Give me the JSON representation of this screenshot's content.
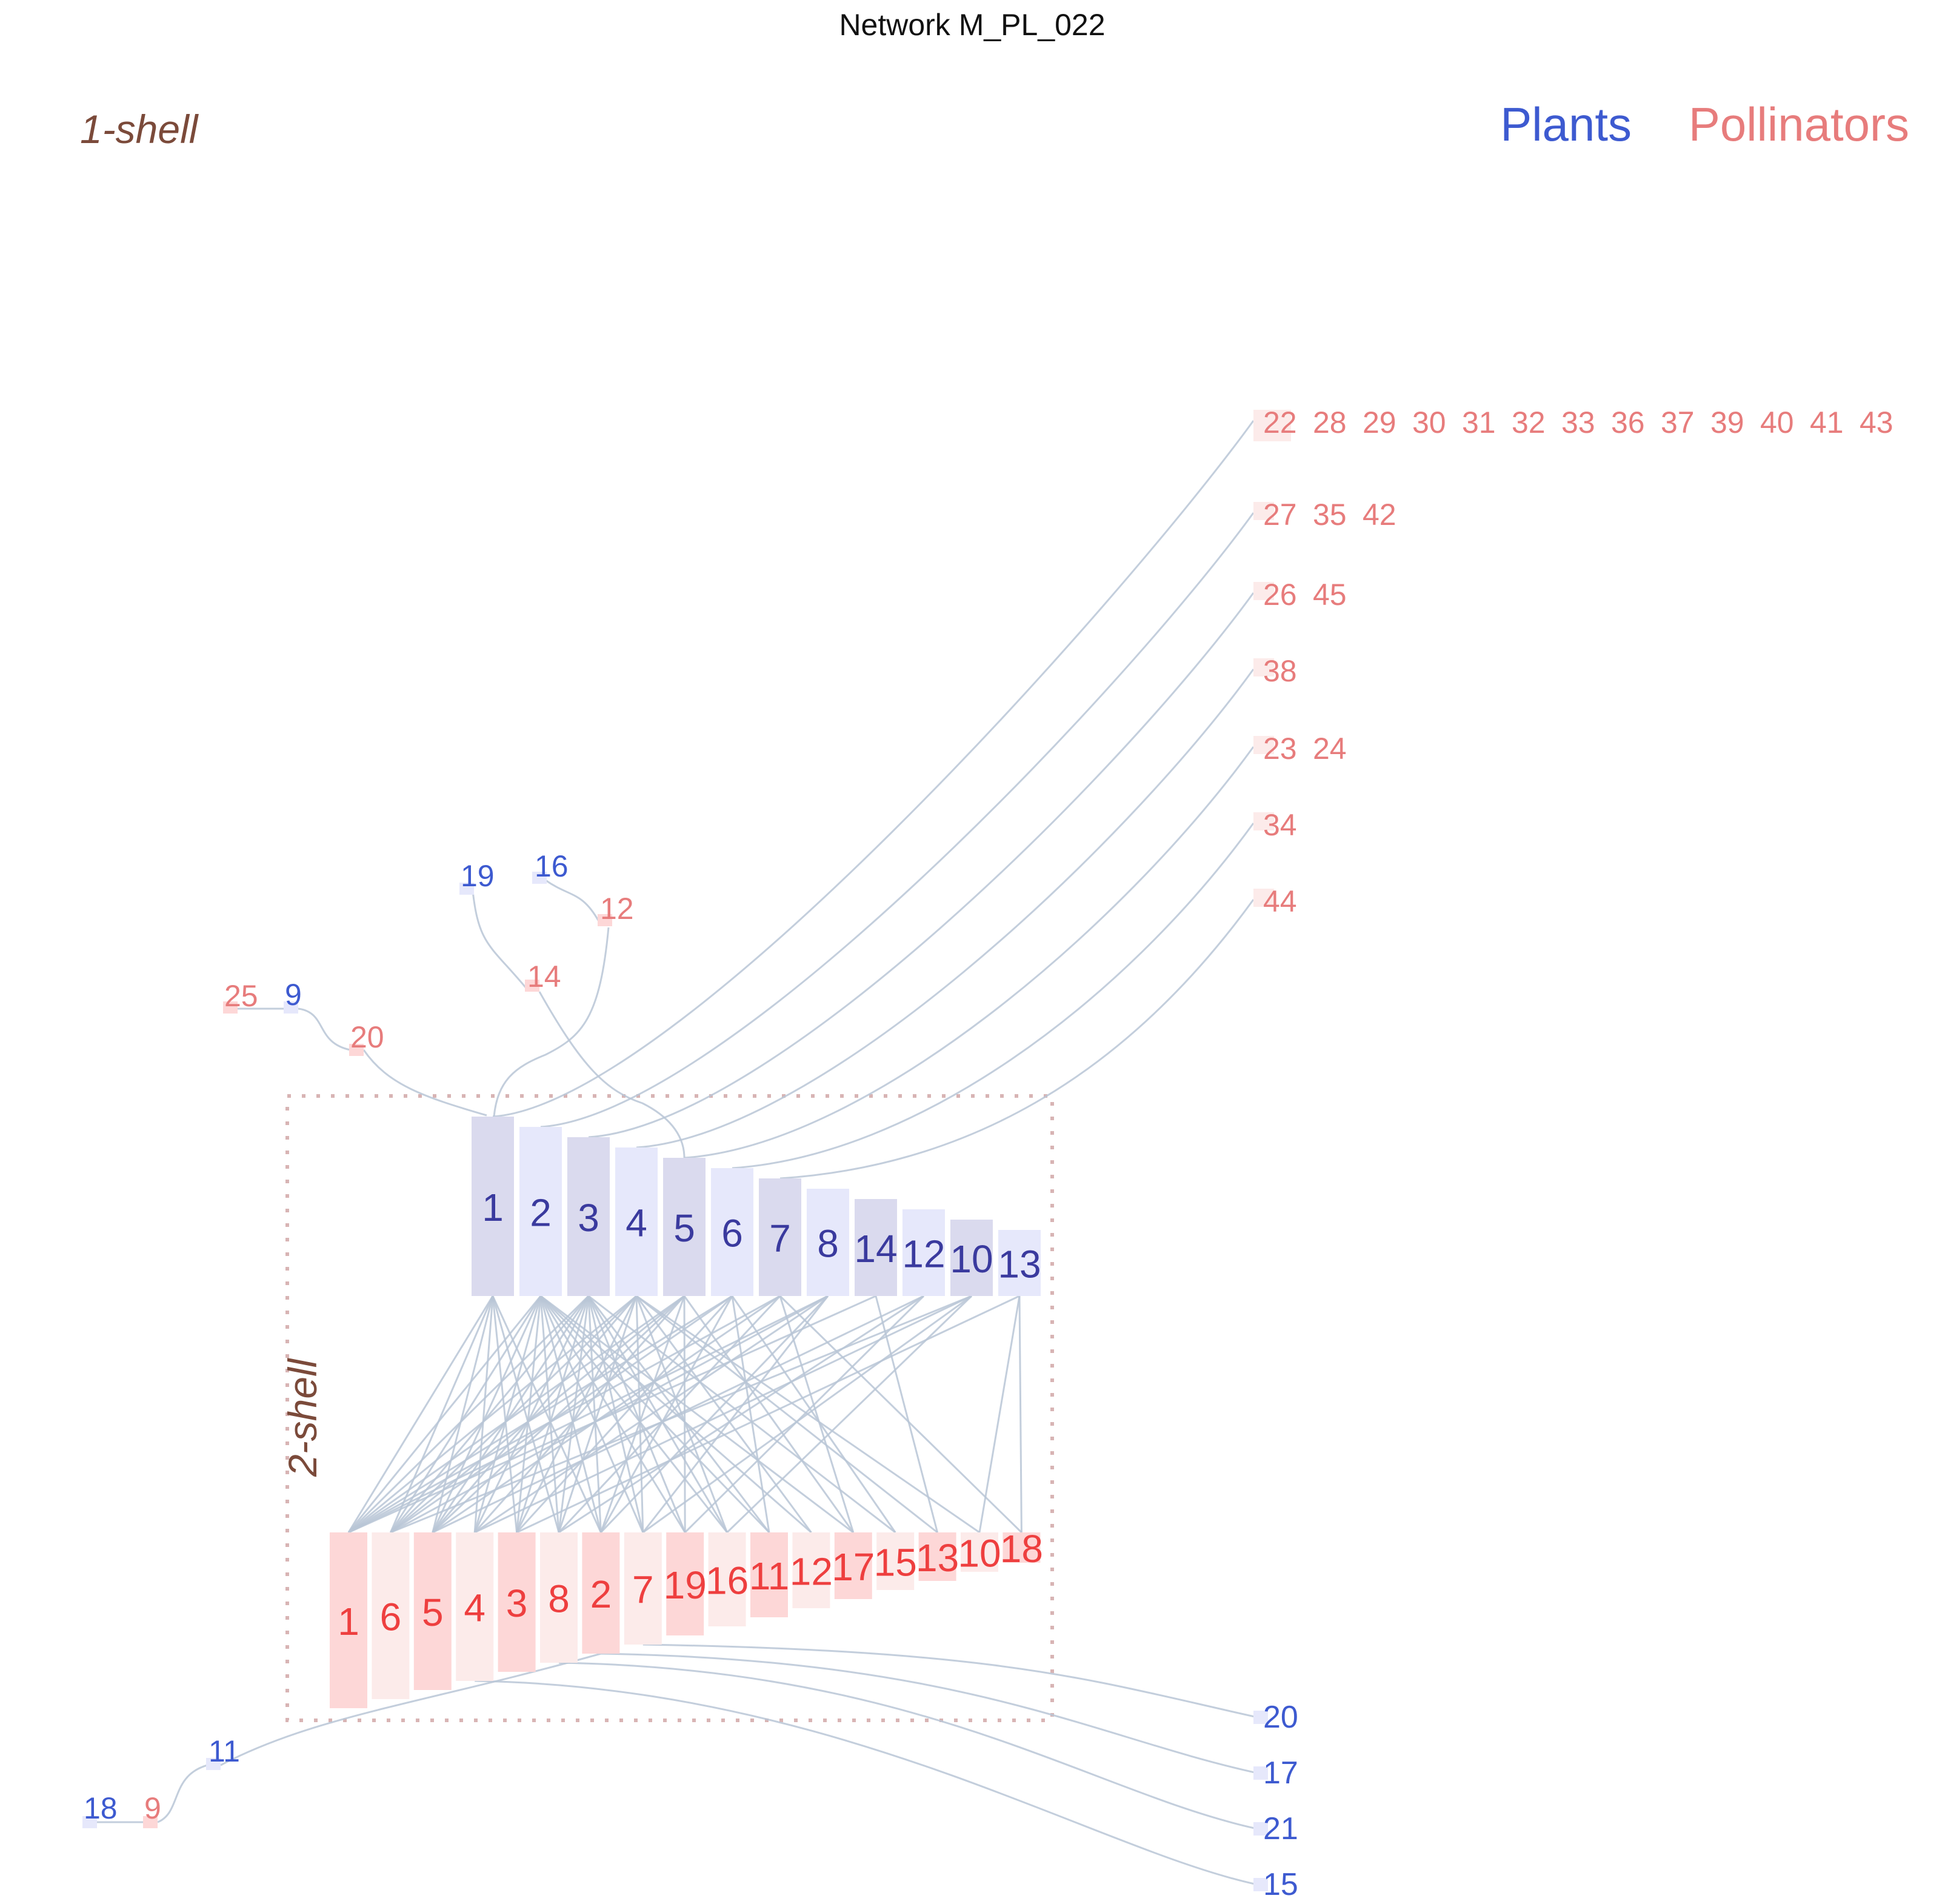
{
  "title": "Network M_PL_022",
  "legend": {
    "plants": "Plants",
    "pollinators": "Pollinators"
  },
  "shells": {
    "outer": "1-shell",
    "inner": "2-shell"
  },
  "colors": {
    "plant_text": "#3d5ad0",
    "pollinator_text": "#e77c7c",
    "core_plant_text": "#3a3a9e",
    "core_pollinator_text": "#ee3f3f",
    "plant_fill_a": "#dadaee",
    "plant_fill_b": "#e6e8fb",
    "pollinator_fill_a": "#fdd7d7",
    "pollinator_fill_b": "#fcebea",
    "link": "#b9c6d6",
    "shell_frame": "#d8b4b4",
    "shell_text": "#7b4a3a"
  },
  "core_plants": [
    "1",
    "2",
    "3",
    "4",
    "5",
    "6",
    "7",
    "8",
    "14",
    "12",
    "10",
    "13"
  ],
  "core_pollinators": [
    "1",
    "6",
    "5",
    "4",
    "3",
    "8",
    "2",
    "7",
    "19",
    "16",
    "11",
    "12",
    "17",
    "15",
    "13",
    "10",
    "18"
  ],
  "core_links": [
    [
      0,
      0
    ],
    [
      0,
      1
    ],
    [
      0,
      2
    ],
    [
      0,
      3
    ],
    [
      0,
      4
    ],
    [
      0,
      5
    ],
    [
      0,
      6
    ],
    [
      1,
      0
    ],
    [
      1,
      1
    ],
    [
      1,
      2
    ],
    [
      1,
      3
    ],
    [
      1,
      4
    ],
    [
      1,
      5
    ],
    [
      1,
      6
    ],
    [
      1,
      7
    ],
    [
      1,
      8
    ],
    [
      1,
      9
    ],
    [
      1,
      10
    ],
    [
      1,
      11
    ],
    [
      1,
      12
    ],
    [
      2,
      0
    ],
    [
      2,
      1
    ],
    [
      2,
      2
    ],
    [
      2,
      3
    ],
    [
      2,
      4
    ],
    [
      2,
      5
    ],
    [
      2,
      6
    ],
    [
      2,
      7
    ],
    [
      2,
      8
    ],
    [
      2,
      9
    ],
    [
      2,
      10
    ],
    [
      2,
      13
    ],
    [
      3,
      0
    ],
    [
      3,
      1
    ],
    [
      3,
      2
    ],
    [
      3,
      4
    ],
    [
      3,
      5
    ],
    [
      3,
      7
    ],
    [
      3,
      9
    ],
    [
      3,
      11
    ],
    [
      3,
      14
    ],
    [
      3,
      15
    ],
    [
      4,
      0
    ],
    [
      4,
      1
    ],
    [
      4,
      2
    ],
    [
      4,
      3
    ],
    [
      4,
      6
    ],
    [
      4,
      8
    ],
    [
      4,
      12
    ],
    [
      5,
      0
    ],
    [
      5,
      1
    ],
    [
      5,
      4
    ],
    [
      5,
      6
    ],
    [
      5,
      10
    ],
    [
      5,
      13
    ],
    [
      6,
      0
    ],
    [
      6,
      2
    ],
    [
      6,
      5
    ],
    [
      6,
      12
    ],
    [
      6,
      16
    ],
    [
      7,
      0
    ],
    [
      7,
      1
    ],
    [
      7,
      3
    ],
    [
      7,
      6
    ],
    [
      7,
      7
    ],
    [
      8,
      0
    ],
    [
      8,
      14
    ],
    [
      9,
      2
    ],
    [
      9,
      5
    ],
    [
      9,
      8
    ],
    [
      10,
      1
    ],
    [
      10,
      3
    ],
    [
      10,
      7
    ],
    [
      10,
      9
    ],
    [
      11,
      4
    ],
    [
      11,
      15
    ],
    [
      11,
      16
    ]
  ],
  "pollinator_groups": [
    {
      "labels": [
        "22",
        "28",
        "29",
        "30",
        "31",
        "32",
        "33",
        "36",
        "37",
        "39",
        "40",
        "41",
        "43"
      ],
      "target": 0
    },
    {
      "labels": [
        "27",
        "35",
        "42"
      ],
      "target": 1
    },
    {
      "labels": [
        "26",
        "45"
      ],
      "target": 2
    },
    {
      "labels": [
        "38"
      ],
      "target": 3
    },
    {
      "labels": [
        "23",
        "24"
      ],
      "target": 4
    },
    {
      "labels": [
        "34"
      ],
      "target": 5
    },
    {
      "labels": [
        "44"
      ],
      "target": 6
    }
  ],
  "plant_groups": [
    {
      "labels": [
        "20"
      ],
      "target": 7
    },
    {
      "labels": [
        "17"
      ],
      "target": 6
    },
    {
      "labels": [
        "21"
      ],
      "target": 5
    },
    {
      "labels": [
        "15"
      ],
      "target": 3
    }
  ],
  "chains": {
    "a_pollinator": "25",
    "a_plant": "9",
    "a_mid_pollinator": "20",
    "b_plant": "19",
    "b_mid_pollinator": "14",
    "c_plant": "16",
    "c_mid_pollinator": "12",
    "d_plant": "18",
    "d_pollinator": "9",
    "d_mid_plant": "11"
  }
}
